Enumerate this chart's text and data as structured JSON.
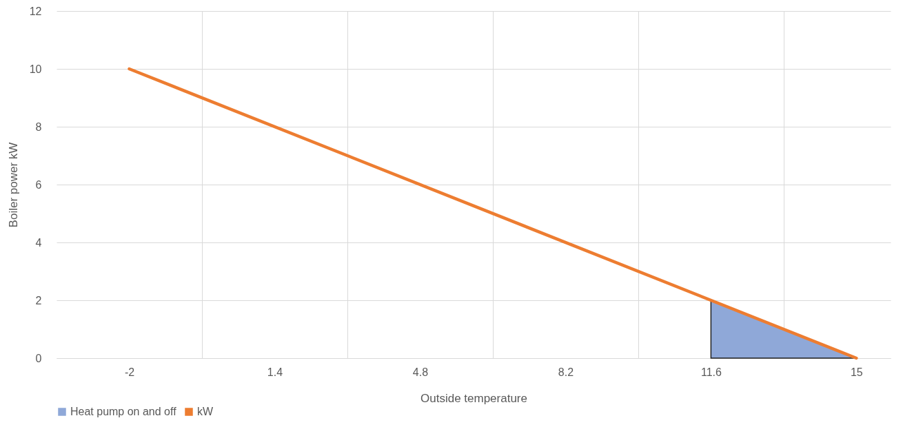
{
  "chart_data": {
    "type": "line",
    "xlabel": "Outside temperature",
    "ylabel": "Boiler power kW",
    "xlim": [
      -3.7,
      15.8
    ],
    "xticks": [
      -2,
      {
        "value": -0.3,
        "label": null
      },
      1.4,
      {
        "value": 3.1,
        "label": null
      },
      4.8,
      {
        "value": 6.5,
        "label": null
      },
      8.2,
      {
        "value": 9.9,
        "label": null
      },
      11.6,
      {
        "value": 13.3,
        "label": null
      },
      15
    ],
    "ylim": [
      0,
      12
    ],
    "yticks": [
      0,
      2,
      4,
      6,
      8,
      10,
      12
    ],
    "series": [
      {
        "name": "Heat pump on and off",
        "type": "area",
        "color": "#8fa8d8",
        "x": [
          11.6,
          15
        ],
        "values": [
          2,
          0
        ]
      },
      {
        "name": "kW",
        "type": "line",
        "color": "#ed7d31",
        "x": [
          -2,
          15
        ],
        "values": [
          10,
          0
        ]
      }
    ],
    "grid": true,
    "legend": "bottom",
    "marker": "none",
    "line_style": "solid"
  }
}
